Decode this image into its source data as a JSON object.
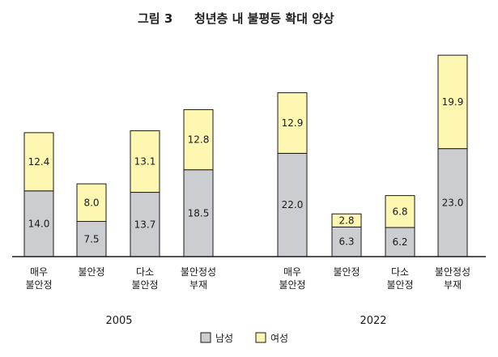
{
  "colors": {
    "male": "#cccdd0",
    "female": "#fdf7b2",
    "stroke": "#1a1a1a"
  },
  "chart_data": {
    "type": "bar",
    "stacked": true,
    "title_label": "그림 3",
    "title": "청년층 내 불평등 확대 양상",
    "groups": [
      {
        "name": "2005",
        "categories": [
          [
            "매우",
            "불안정"
          ],
          [
            "불안정"
          ],
          [
            "다소",
            "불안정"
          ],
          [
            "불안정성",
            "부재"
          ]
        ],
        "series": [
          {
            "name": "남성",
            "values": [
              14.0,
              7.5,
              13.7,
              18.5
            ]
          },
          {
            "name": "여성",
            "values": [
              12.4,
              8.0,
              13.1,
              12.8
            ]
          }
        ]
      },
      {
        "name": "2022",
        "categories": [
          [
            "매우",
            "불안정"
          ],
          [
            "불안정"
          ],
          [
            "다소",
            "불안정"
          ],
          [
            "불안정성",
            "부재"
          ]
        ],
        "series": [
          {
            "name": "남성",
            "values": [
              22.0,
              6.3,
              6.2,
              23.0
            ]
          },
          {
            "name": "여성",
            "values": [
              12.9,
              2.8,
              6.8,
              19.9
            ]
          }
        ]
      }
    ],
    "ylim": [
      0,
      43
    ],
    "grid": false,
    "legend": {
      "position": "bottom-center",
      "items": [
        "남성",
        "여성"
      ]
    }
  }
}
